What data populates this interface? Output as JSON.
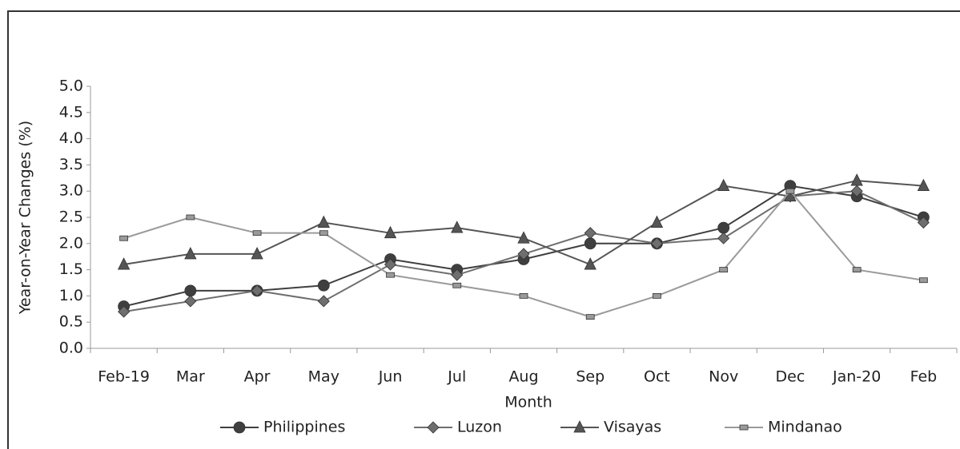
{
  "chart_data": {
    "type": "line",
    "x_label": "Month",
    "y_label": "Year-on-Year Changes (%)",
    "categories": [
      "Feb-19",
      "Mar",
      "Apr",
      "May",
      "Jun",
      "Jul",
      "Aug",
      "Sep",
      "Oct",
      "Nov",
      "Dec",
      "Jan-20",
      "Feb"
    ],
    "series": [
      {
        "name": "Philippines",
        "color": "#3f3f3f",
        "marker": "circle",
        "values": [
          0.8,
          1.1,
          1.1,
          1.2,
          1.7,
          1.5,
          1.7,
          2.0,
          2.0,
          2.3,
          3.1,
          2.9,
          2.5
        ]
      },
      {
        "name": "Luzon",
        "color": "#6e6e6e",
        "marker": "diamond",
        "values": [
          0.7,
          0.9,
          1.1,
          0.9,
          1.6,
          1.4,
          1.8,
          2.2,
          2.0,
          2.1,
          2.9,
          3.0,
          2.4
        ]
      },
      {
        "name": "Visayas",
        "color": "#555555",
        "marker": "triangle",
        "values": [
          1.6,
          1.8,
          1.8,
          2.4,
          2.2,
          2.3,
          2.1,
          1.6,
          2.4,
          3.1,
          2.9,
          3.2,
          3.1
        ]
      },
      {
        "name": "Mindanao",
        "color": "#9a9a9a",
        "marker": "square",
        "values": [
          2.1,
          2.5,
          2.2,
          2.2,
          1.4,
          1.2,
          1.0,
          0.6,
          1.0,
          1.5,
          3.0,
          1.5,
          1.3
        ]
      }
    ],
    "ylim": [
      0,
      5
    ],
    "yticks": [
      {
        "value": 0,
        "label": "0.0"
      },
      0.5,
      {
        "value": 1,
        "label": "1.0"
      },
      1.5,
      {
        "value": 2,
        "label": "2.0"
      },
      2.5,
      {
        "value": 3,
        "label": "3.0"
      },
      3.5,
      {
        "value": 4,
        "label": "4.0"
      },
      4.5,
      {
        "value": 5,
        "label": "5.0"
      }
    ],
    "legend": "bottom"
  }
}
